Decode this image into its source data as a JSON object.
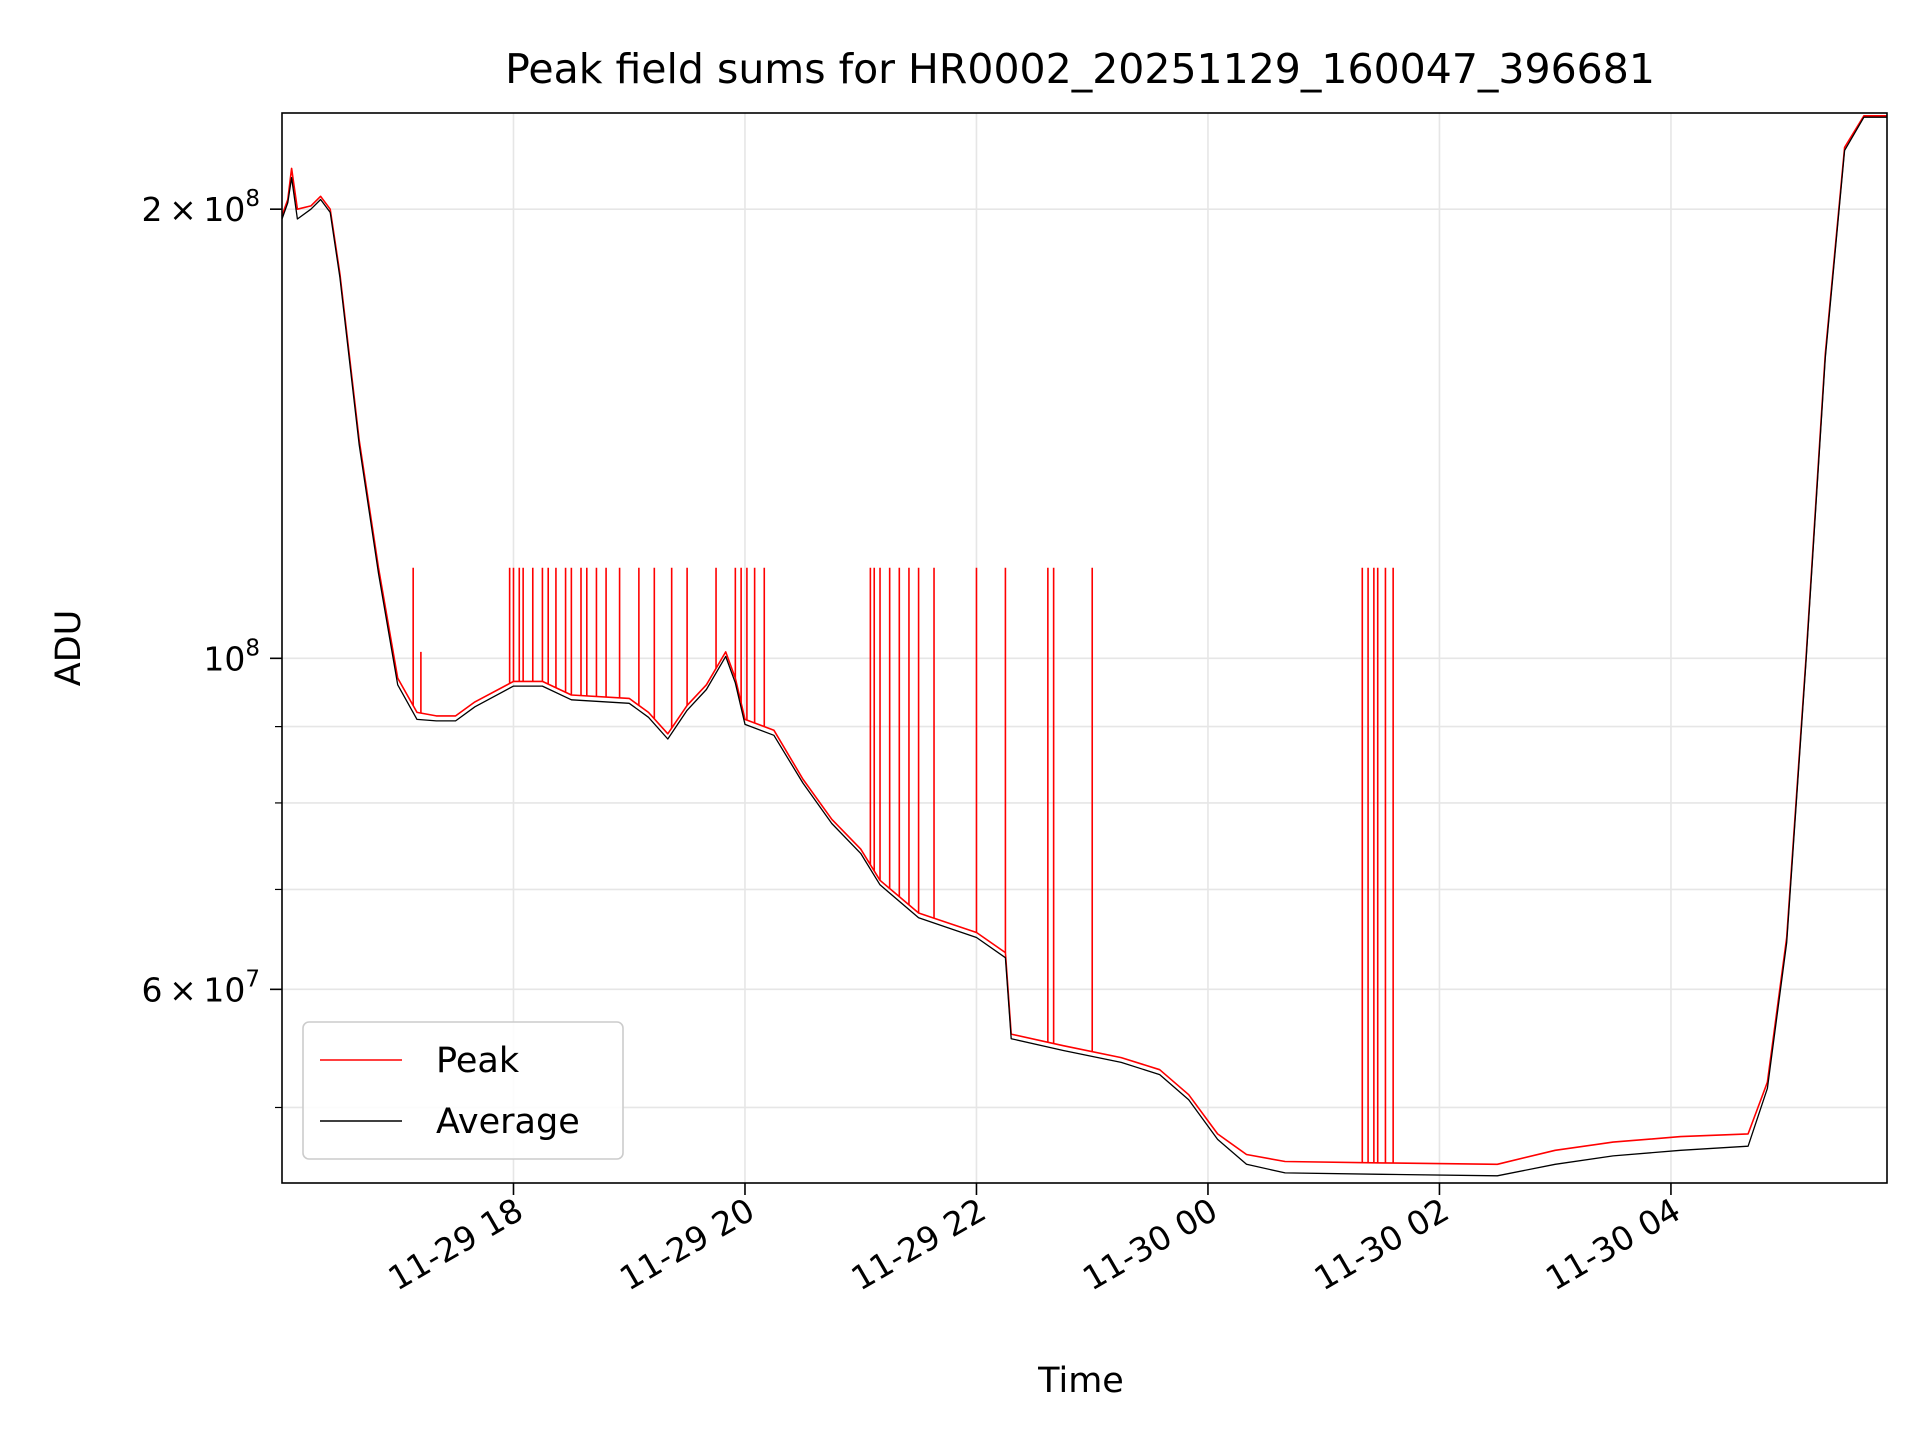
{
  "chart_data": {
    "type": "line",
    "title": "Peak field sums for HR0002_20251129_160047_396681",
    "xlabel": "Time",
    "ylabel": "ADU",
    "y_scale": "log",
    "x_range": [
      "2025-11-29 16:00",
      "2025-11-30 05:52"
    ],
    "y_range": [
      44500000,
      232000000
    ],
    "x_ticks": [
      {
        "t": "2025-11-29 18:00",
        "label": "11-29 18"
      },
      {
        "t": "2025-11-29 20:00",
        "label": "11-29 20"
      },
      {
        "t": "2025-11-29 22:00",
        "label": "11-29 22"
      },
      {
        "t": "2025-11-30 00:00",
        "label": "11-30 00"
      },
      {
        "t": "2025-11-30 02:00",
        "label": "11-30 02"
      },
      {
        "t": "2025-11-30 04:00",
        "label": "11-30 04"
      }
    ],
    "y_major_ticks": [
      {
        "value": 60000000,
        "mant": "6",
        "exp": "7",
        "style": "sci"
      },
      {
        "value": 100000000,
        "mant": "",
        "exp": "8",
        "style": "pow"
      },
      {
        "value": 200000000,
        "mant": "2",
        "exp": "8",
        "style": "sci"
      }
    ],
    "y_minor_ticks": [
      50000000,
      70000000,
      80000000,
      90000000
    ],
    "grid": true,
    "legend": {
      "position": "lower-left"
    },
    "series": [
      {
        "name": "Peak",
        "color": "#ff0000",
        "points": [
          [
            "2025-11-29 16:00",
            198000000
          ],
          [
            "2025-11-29 16:03",
            203000000
          ],
          [
            "2025-11-29 16:05",
            213000000
          ],
          [
            "2025-11-29 16:08",
            200000000
          ],
          [
            "2025-11-29 16:15",
            201000000
          ],
          [
            "2025-11-29 16:20",
            204000000
          ],
          [
            "2025-11-29 16:25",
            200000000
          ],
          [
            "2025-11-29 16:30",
            181000000
          ],
          [
            "2025-11-29 16:40",
            140000000
          ],
          [
            "2025-11-29 16:50",
            115000000
          ],
          [
            "2025-11-29 17:00",
            97000000
          ],
          [
            "2025-11-29 17:10",
            92000000
          ],
          [
            "2025-11-29 17:20",
            91500000
          ],
          [
            "2025-11-29 17:30",
            91500000
          ],
          [
            "2025-11-29 17:40",
            93500000
          ],
          [
            "2025-11-29 18:00",
            96500000
          ],
          [
            "2025-11-29 18:15",
            96500000
          ],
          [
            "2025-11-29 18:30",
            94500000
          ],
          [
            "2025-11-29 19:00",
            94000000
          ],
          [
            "2025-11-29 19:10",
            92000000
          ],
          [
            "2025-11-29 19:20",
            89000000
          ],
          [
            "2025-11-29 19:30",
            93000000
          ],
          [
            "2025-11-29 19:40",
            96000000
          ],
          [
            "2025-11-29 19:50",
            101000000
          ],
          [
            "2025-11-29 19:55",
            97000000
          ],
          [
            "2025-11-29 20:00",
            91000000
          ],
          [
            "2025-11-29 20:15",
            89500000
          ],
          [
            "2025-11-29 20:30",
            83000000
          ],
          [
            "2025-11-29 20:45",
            78000000
          ],
          [
            "2025-11-29 21:00",
            74500000
          ],
          [
            "2025-11-29 21:10",
            71000000
          ],
          [
            "2025-11-29 21:30",
            67500000
          ],
          [
            "2025-11-29 21:45",
            66500000
          ],
          [
            "2025-11-29 22:00",
            65500000
          ],
          [
            "2025-11-29 22:15",
            63500000
          ],
          [
            "2025-11-29 22:18",
            56000000
          ],
          [
            "2025-11-29 22:45",
            55000000
          ],
          [
            "2025-11-29 23:15",
            54000000
          ],
          [
            "2025-11-29 23:35",
            53000000
          ],
          [
            "2025-11-29 23:50",
            51000000
          ],
          [
            "2025-11-30 00:05",
            48000000
          ],
          [
            "2025-11-30 00:20",
            46500000
          ],
          [
            "2025-11-30 00:40",
            46000000
          ],
          [
            "2025-11-30 01:30",
            45900000
          ],
          [
            "2025-11-30 02:30",
            45800000
          ],
          [
            "2025-11-30 03:00",
            46800000
          ],
          [
            "2025-11-30 03:30",
            47400000
          ],
          [
            "2025-11-30 04:05",
            47800000
          ],
          [
            "2025-11-30 04:40",
            48000000
          ],
          [
            "2025-11-30 04:50",
            52000000
          ],
          [
            "2025-11-30 05:00",
            65000000
          ],
          [
            "2025-11-30 05:10",
            100000000
          ],
          [
            "2025-11-30 05:20",
            160000000
          ],
          [
            "2025-11-30 05:30",
            220000000
          ],
          [
            "2025-11-30 05:40",
            231000000
          ],
          [
            "2025-11-30 05:52",
            231000000
          ]
        ],
        "spikes": [
          [
            "2025-11-29 17:08",
            115000000
          ],
          [
            "2025-11-29 17:12",
            101000000
          ],
          [
            "2025-11-29 17:58",
            115000000
          ],
          [
            "2025-11-29 18:00",
            115000000
          ],
          [
            "2025-11-29 18:03",
            115000000
          ],
          [
            "2025-11-29 18:05",
            115000000
          ],
          [
            "2025-11-29 18:10",
            115000000
          ],
          [
            "2025-11-29 18:15",
            115000000
          ],
          [
            "2025-11-29 18:18",
            115000000
          ],
          [
            "2025-11-29 18:22",
            115000000
          ],
          [
            "2025-11-29 18:27",
            115000000
          ],
          [
            "2025-11-29 18:30",
            115000000
          ],
          [
            "2025-11-29 18:35",
            115000000
          ],
          [
            "2025-11-29 18:38",
            115000000
          ],
          [
            "2025-11-29 18:43",
            115000000
          ],
          [
            "2025-11-29 18:48",
            115000000
          ],
          [
            "2025-11-29 18:55",
            115000000
          ],
          [
            "2025-11-29 19:05",
            115000000
          ],
          [
            "2025-11-29 19:13",
            115000000
          ],
          [
            "2025-11-29 19:22",
            115000000
          ],
          [
            "2025-11-29 19:30",
            115000000
          ],
          [
            "2025-11-29 19:45",
            115000000
          ],
          [
            "2025-11-29 19:55",
            115000000
          ],
          [
            "2025-11-29 19:58",
            115000000
          ],
          [
            "2025-11-29 20:01",
            115000000
          ],
          [
            "2025-11-29 20:05",
            115000000
          ],
          [
            "2025-11-29 20:10",
            115000000
          ],
          [
            "2025-11-29 21:05",
            115000000
          ],
          [
            "2025-11-29 21:07",
            115000000
          ],
          [
            "2025-11-29 21:10",
            115000000
          ],
          [
            "2025-11-29 21:15",
            115000000
          ],
          [
            "2025-11-29 21:20",
            115000000
          ],
          [
            "2025-11-29 21:25",
            115000000
          ],
          [
            "2025-11-29 21:30",
            115000000
          ],
          [
            "2025-11-29 21:38",
            115000000
          ],
          [
            "2025-11-29 22:00",
            115000000
          ],
          [
            "2025-11-29 22:15",
            115000000
          ],
          [
            "2025-11-29 22:37",
            115000000
          ],
          [
            "2025-11-29 22:40",
            115000000
          ],
          [
            "2025-11-29 23:00",
            115000000
          ],
          [
            "2025-11-30 01:20",
            115000000
          ],
          [
            "2025-11-30 01:23",
            115000000
          ],
          [
            "2025-11-30 01:26",
            115000000
          ],
          [
            "2025-11-30 01:28",
            115000000
          ],
          [
            "2025-11-30 01:32",
            115000000
          ],
          [
            "2025-11-30 01:36",
            115000000
          ]
        ]
      },
      {
        "name": "Average",
        "color": "#000000",
        "points": [
          [
            "2025-11-29 16:00",
            197000000
          ],
          [
            "2025-11-29 16:03",
            202000000
          ],
          [
            "2025-11-29 16:05",
            210000000
          ],
          [
            "2025-11-29 16:08",
            197000000
          ],
          [
            "2025-11-29 16:15",
            200000000
          ],
          [
            "2025-11-29 16:20",
            203000000
          ],
          [
            "2025-11-29 16:25",
            199000000
          ],
          [
            "2025-11-29 16:30",
            180000000
          ],
          [
            "2025-11-29 16:40",
            139000000
          ],
          [
            "2025-11-29 16:50",
            114000000
          ],
          [
            "2025-11-29 17:00",
            96000000
          ],
          [
            "2025-11-29 17:10",
            91000000
          ],
          [
            "2025-11-29 17:20",
            90800000
          ],
          [
            "2025-11-29 17:30",
            90800000
          ],
          [
            "2025-11-29 17:40",
            92800000
          ],
          [
            "2025-11-29 18:00",
            95800000
          ],
          [
            "2025-11-29 18:15",
            95800000
          ],
          [
            "2025-11-29 18:30",
            93800000
          ],
          [
            "2025-11-29 19:00",
            93300000
          ],
          [
            "2025-11-29 19:10",
            91300000
          ],
          [
            "2025-11-29 19:20",
            88300000
          ],
          [
            "2025-11-29 19:30",
            92300000
          ],
          [
            "2025-11-29 19:40",
            95300000
          ],
          [
            "2025-11-29 19:50",
            100300000
          ],
          [
            "2025-11-29 19:55",
            96300000
          ],
          [
            "2025-11-29 20:00",
            90300000
          ],
          [
            "2025-11-29 20:15",
            88800000
          ],
          [
            "2025-11-29 20:30",
            82500000
          ],
          [
            "2025-11-29 20:45",
            77500000
          ],
          [
            "2025-11-29 21:00",
            74000000
          ],
          [
            "2025-11-29 21:10",
            70500000
          ],
          [
            "2025-11-29 21:30",
            67000000
          ],
          [
            "2025-11-29 21:45",
            66000000
          ],
          [
            "2025-11-29 22:00",
            65000000
          ],
          [
            "2025-11-29 22:15",
            63000000
          ],
          [
            "2025-11-29 22:18",
            55600000
          ],
          [
            "2025-11-29 22:45",
            54600000
          ],
          [
            "2025-11-29 23:15",
            53600000
          ],
          [
            "2025-11-29 23:35",
            52600000
          ],
          [
            "2025-11-29 23:50",
            50600000
          ],
          [
            "2025-11-30 00:05",
            47600000
          ],
          [
            "2025-11-30 00:20",
            45800000
          ],
          [
            "2025-11-30 00:40",
            45200000
          ],
          [
            "2025-11-30 01:30",
            45100000
          ],
          [
            "2025-11-30 02:30",
            45000000
          ],
          [
            "2025-11-30 03:00",
            45800000
          ],
          [
            "2025-11-30 03:30",
            46400000
          ],
          [
            "2025-11-30 04:05",
            46800000
          ],
          [
            "2025-11-30 04:40",
            47100000
          ],
          [
            "2025-11-30 04:50",
            51500000
          ],
          [
            "2025-11-30 05:00",
            64500000
          ],
          [
            "2025-11-30 05:10",
            99500000
          ],
          [
            "2025-11-30 05:20",
            159000000
          ],
          [
            "2025-11-30 05:30",
            219000000
          ],
          [
            "2025-11-30 05:40",
            230500000
          ],
          [
            "2025-11-30 05:52",
            230500000
          ]
        ]
      }
    ]
  }
}
